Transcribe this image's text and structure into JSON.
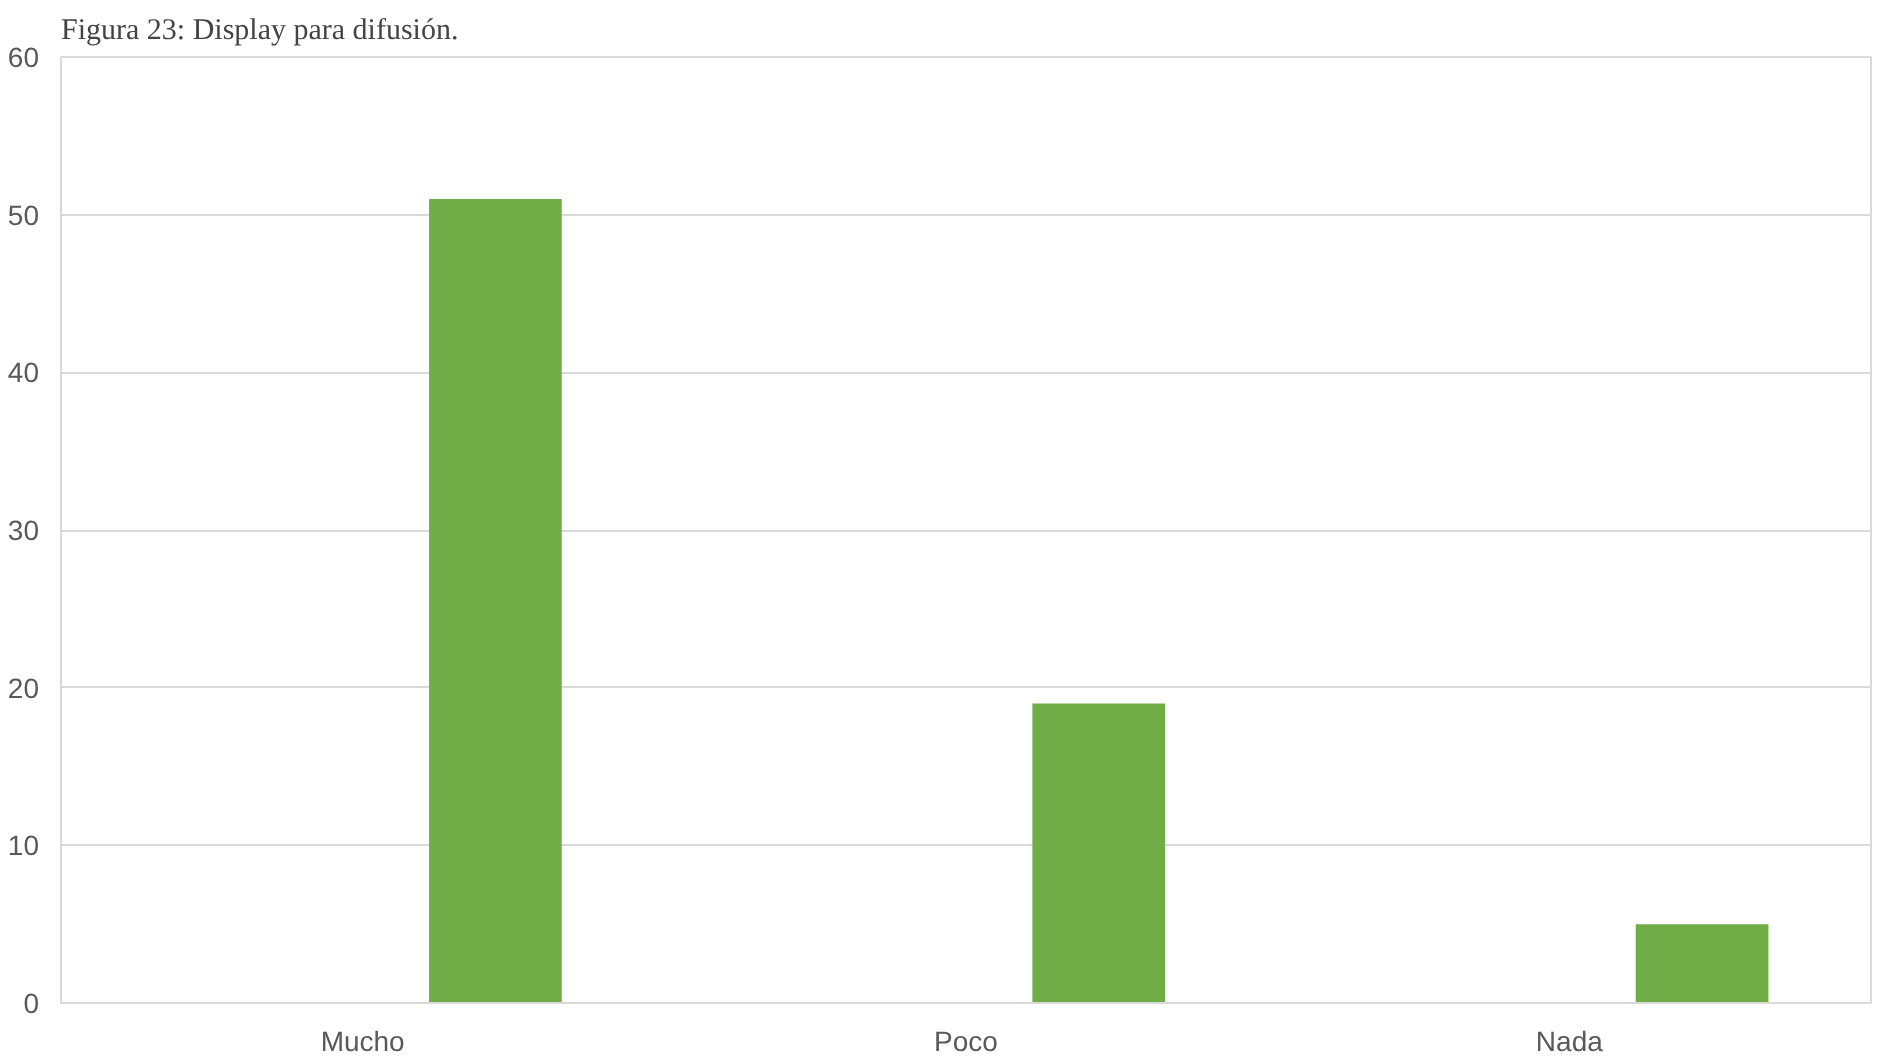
{
  "chart_data": {
    "type": "bar",
    "title": "Figura 23: Display para difusión.",
    "categories": [
      "Mucho",
      "Poco",
      "Nada"
    ],
    "values": [
      51,
      19,
      5
    ],
    "color": "#70ad47",
    "ylim": [
      0,
      60
    ],
    "yticks": [
      0,
      10,
      20,
      30,
      40,
      50,
      60
    ],
    "grid": "y"
  }
}
